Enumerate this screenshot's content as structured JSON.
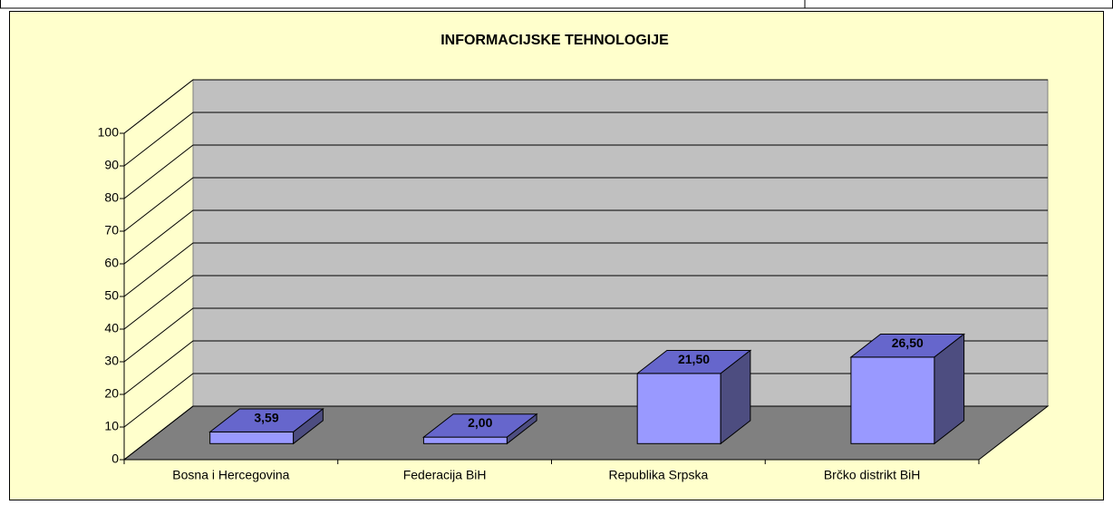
{
  "chart_data": {
    "type": "bar3d",
    "title": "INFORMACIJSKE TEHNOLOGIJE",
    "categories": [
      "Bosna i Hercegovina",
      "Federacija BiH",
      "Republika Srpska",
      "Brčko distrikt BiH"
    ],
    "values": [
      3.59,
      2.0,
      21.5,
      26.5
    ],
    "value_labels": [
      "3,59",
      "2,00",
      "21,50",
      "26,50"
    ],
    "color": "#9999ff",
    "ylim": [
      0,
      100
    ],
    "yticks": [
      0,
      10,
      20,
      30,
      40,
      50,
      60,
      70,
      80,
      90,
      100
    ],
    "grid": true
  }
}
